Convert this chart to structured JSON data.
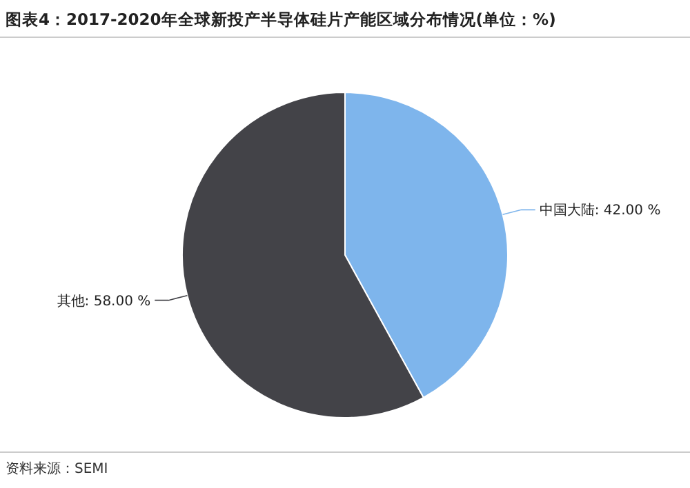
{
  "chart_data": {
    "type": "pie",
    "title": "图表4：2017-2020年全球新投产半导体硅片产能区域分布情况(单位：%)",
    "categories": [
      "中国大陆",
      "其他"
    ],
    "values": [
      42,
      58
    ],
    "value_labels": [
      "42.00 %",
      "58.00 %"
    ],
    "colors": [
      "#7eb5ec",
      "#434348"
    ],
    "annotations": [
      "资料来源：SEMI"
    ]
  }
}
